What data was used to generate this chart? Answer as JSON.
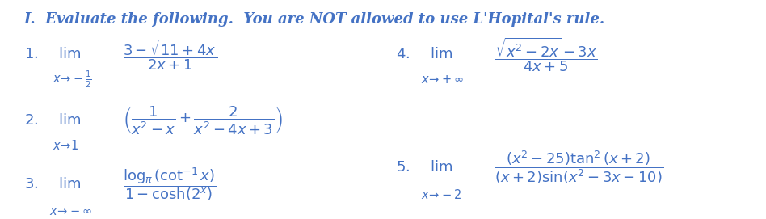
{
  "bg_color": "#ffffff",
  "text_color": "#4472c4",
  "title": "I.  Evaluate the following.  You are NOT allowed to use L’Hopital’s rule.",
  "items": [
    {
      "number": "1.",
      "lim_label": "\\lim",
      "under": "x\\to-\\frac{1}{2}",
      "expr": "\\frac{3-\\sqrt{11+4x}}{2x+1}"
    },
    {
      "number": "2.",
      "lim_label": "\\lim",
      "under": "x\\to 1^-",
      "expr": "\\left(\\frac{1}{x^2-x}+\\frac{2}{x^2-4x+3}\\right)"
    },
    {
      "number": "3.",
      "lim_label": "\\lim",
      "under": "x\\to-\\infty",
      "expr": "\\frac{\\log_{\\pi}(\\cot^{-1}x)}{1-\\cosh(2^x)}"
    },
    {
      "number": "4.",
      "lim_label": "\\lim",
      "under": "x\\to+\\infty",
      "expr": "\\frac{\\sqrt{x^2-2x}-3x}{4x+5}"
    },
    {
      "number": "5.",
      "lim_label": "\\lim",
      "under": "x\\to-2",
      "expr": "\\frac{(x^2-25)\\tan^2(x+2)}{(x+2)\\sin(x^2-3x-10)}"
    }
  ],
  "fontsize_title": 13,
  "fontsize_items": 13
}
